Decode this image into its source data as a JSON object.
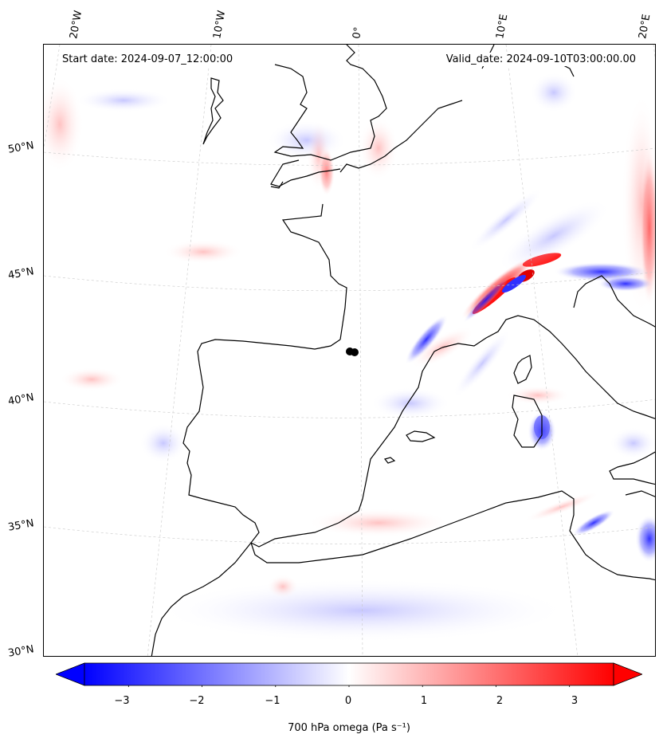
{
  "header": {
    "start_date": "Start date: 2024-09-07_12:00:00",
    "valid_date": "Valid_date: 2024-09-10T03:00:00.00"
  },
  "longitude_labels": [
    "20°W",
    "10°W",
    "0°",
    "10°E",
    "20°E"
  ],
  "latitude_labels": [
    "50°N",
    "45°N",
    "40°N",
    "35°N",
    "30°N"
  ],
  "colorbar": {
    "ticks": [
      "−3",
      "−2",
      "−1",
      "0",
      "1",
      "2",
      "3"
    ],
    "tick_values": [
      -3,
      -2,
      -1,
      0,
      1,
      2,
      3
    ],
    "range": [
      -3.6,
      3.6
    ],
    "label": "700 hPa omega (Pa s⁻¹)",
    "colormap": "bwr",
    "low_color": "#0000ff",
    "mid_color": "#ffffff",
    "high_color": "#ff0000"
  },
  "colors": {
    "coastline": "#000000",
    "gridline": "#bbbbbb",
    "marker": "#000000"
  }
}
